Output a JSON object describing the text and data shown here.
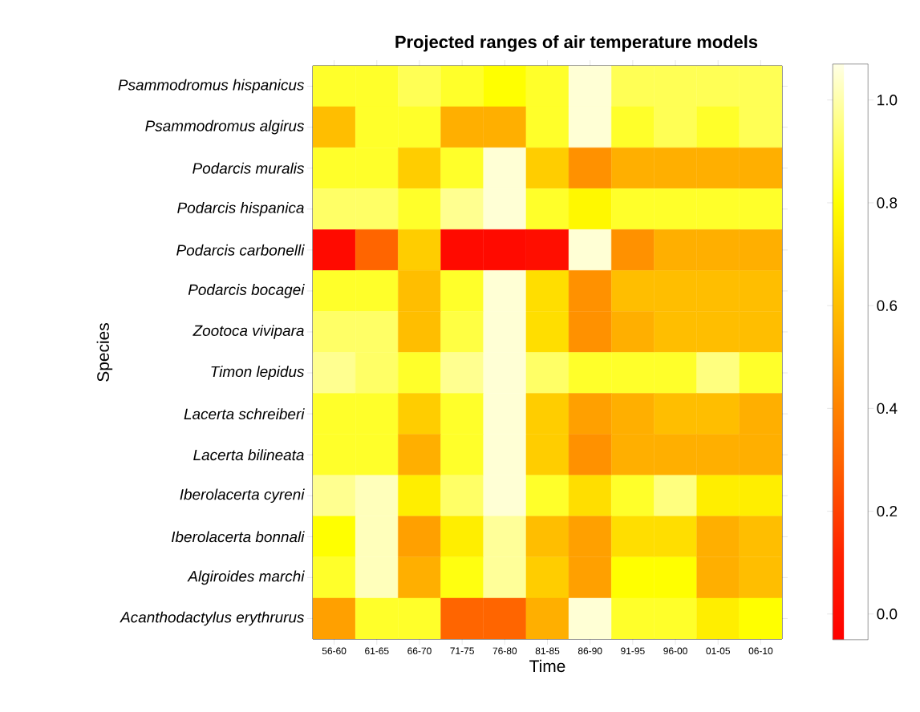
{
  "chart_data": {
    "type": "heatmap",
    "title": "Projected ranges of air temperature models",
    "xlabel": "Time",
    "ylabel": "Species",
    "categories": [
      "56-60",
      "61-65",
      "66-70",
      "71-75",
      "76-80",
      "81-85",
      "86-90",
      "91-95",
      "96-00",
      "01-05",
      "06-10"
    ],
    "y_categories": [
      "Psammodromus hispanicus",
      "Psammodromus algirus",
      "Podarcis muralis",
      "Podarcis hispanica",
      "Podarcis carbonelli",
      "Podarcis bocagei",
      "Zootoca vivipara",
      "Timon lepidus",
      "Lacerta schreiberi",
      "Lacerta bilineata",
      "Iberolacerta cyreni",
      "Iberolacerta bonnali",
      "Algiroides marchi",
      "Acanthodactylus erythrurus"
    ],
    "cells": [
      [
        0.85,
        0.85,
        0.9,
        0.85,
        0.8,
        0.85,
        1.05,
        0.9,
        0.9,
        0.9,
        0.9
      ],
      [
        0.6,
        0.85,
        0.85,
        0.55,
        0.55,
        0.85,
        1.05,
        0.85,
        0.9,
        0.85,
        0.9
      ],
      [
        0.85,
        0.85,
        0.65,
        0.85,
        1.05,
        0.65,
        0.45,
        0.55,
        0.55,
        0.55,
        0.55
      ],
      [
        0.92,
        0.92,
        0.85,
        0.97,
        1.05,
        0.85,
        0.78,
        0.85,
        0.85,
        0.85,
        0.85
      ],
      [
        0.0,
        0.3,
        0.65,
        0.0,
        0.0,
        0.02,
        1.05,
        0.45,
        0.55,
        0.55,
        0.55
      ],
      [
        0.85,
        0.85,
        0.6,
        0.85,
        1.05,
        0.7,
        0.45,
        0.6,
        0.6,
        0.6,
        0.6
      ],
      [
        0.92,
        0.92,
        0.6,
        0.88,
        1.05,
        0.7,
        0.45,
        0.55,
        0.6,
        0.6,
        0.6
      ],
      [
        0.97,
        0.92,
        0.85,
        0.97,
        1.05,
        0.92,
        0.85,
        0.85,
        0.85,
        0.95,
        0.85
      ],
      [
        0.85,
        0.85,
        0.65,
        0.85,
        1.05,
        0.65,
        0.5,
        0.55,
        0.6,
        0.6,
        0.55
      ],
      [
        0.85,
        0.85,
        0.55,
        0.85,
        1.05,
        0.65,
        0.45,
        0.55,
        0.55,
        0.55,
        0.55
      ],
      [
        0.97,
        1.02,
        0.75,
        0.92,
        1.05,
        0.85,
        0.7,
        0.85,
        0.95,
        0.75,
        0.75
      ],
      [
        0.8,
        1.02,
        0.5,
        0.75,
        0.98,
        0.6,
        0.5,
        0.7,
        0.7,
        0.55,
        0.6
      ],
      [
        0.85,
        1.02,
        0.55,
        0.82,
        0.98,
        0.65,
        0.5,
        0.8,
        0.8,
        0.55,
        0.6
      ],
      [
        0.5,
        0.85,
        0.85,
        0.3,
        0.3,
        0.55,
        1.05,
        0.85,
        0.85,
        0.75,
        0.8
      ]
    ],
    "clim": [
      -0.05,
      1.07
    ],
    "cticks": [
      {
        "value": 0,
        "label": "0.0"
      },
      {
        "value": 0.2,
        "label": "0.2"
      },
      {
        "value": 0.4,
        "label": "0.4"
      },
      {
        "value": 0.6,
        "label": "0.6"
      },
      {
        "value": 0.8,
        "label": "0.8"
      },
      {
        "value": 1,
        "label": "1.0"
      }
    ]
  }
}
